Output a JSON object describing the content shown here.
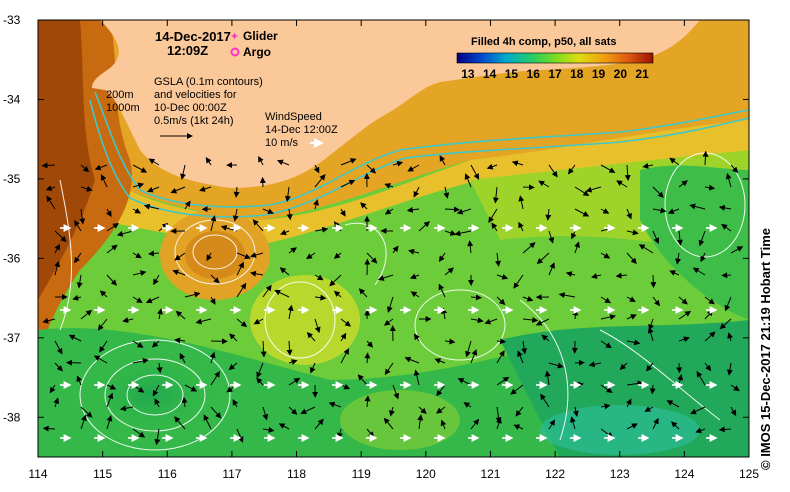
{
  "map": {
    "date": "14-Dec-2017",
    "time": "12:09Z",
    "legend_symbols": [
      {
        "label": "Glider",
        "color": "#ff33cc"
      },
      {
        "label": "Argo",
        "color": "#ff33cc"
      }
    ],
    "gsla": {
      "line1": "GSLA (0.1m contours)",
      "line2": "and velocities for",
      "line3": "10-Dec 00:00Z",
      "line4": "0.5m/s (1kt 24h)"
    },
    "depths": [
      "200m",
      "1000m"
    ],
    "wind": {
      "line1": "WindSpeed",
      "line2": "14-Dec 12:00Z",
      "line3": "10 m/s"
    },
    "colorbar": {
      "title": "Filled 4h comp, p50, all sats",
      "ticks": [
        "13",
        "14",
        "15",
        "16",
        "17",
        "18",
        "19",
        "20",
        "21"
      ],
      "min": 12.5,
      "max": 21.5
    },
    "lat_labels": [
      "-33",
      "-34",
      "-35",
      "-36",
      "-37",
      "-38"
    ],
    "lat_values": [
      -33,
      -34,
      -35,
      -36,
      -37,
      -38
    ],
    "lon_labels": [
      "114",
      "115",
      "116",
      "117",
      "118",
      "119",
      "120",
      "121",
      "122",
      "123",
      "124",
      "125"
    ],
    "lon_values": [
      114,
      115,
      116,
      117,
      118,
      119,
      120,
      121,
      122,
      123,
      124,
      125
    ],
    "lat_range": [
      -38.5,
      -33
    ],
    "lon_range": [
      114,
      125
    ],
    "credit": "© IMOS 15-Dec-2017 21:19 Hobart Time",
    "colors": {
      "land": "#fbc89a",
      "warm": "#d67a12",
      "green": "#5fc832",
      "blue_green": "#28b45a",
      "contour": "#ffffff",
      "isobath": "#40c8c8"
    }
  }
}
